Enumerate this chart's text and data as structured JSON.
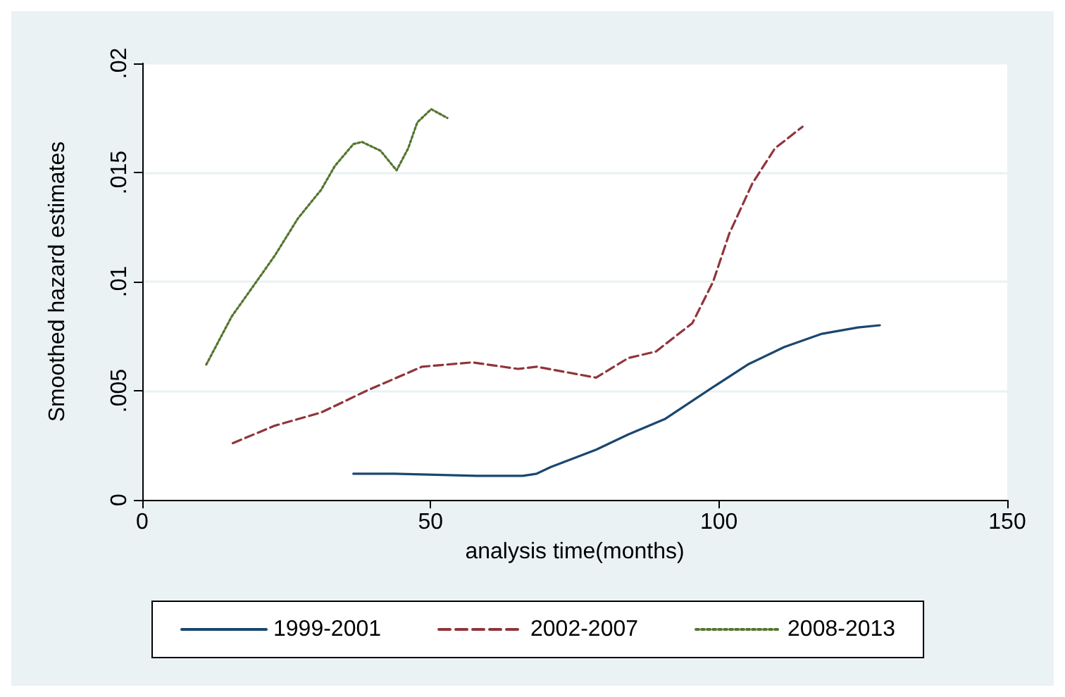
{
  "chart_data": {
    "type": "line",
    "xlabel": "analysis time(months)",
    "ylabel": "Smoothed hazard estimates",
    "xlim": [
      0,
      150
    ],
    "xticks": [
      0,
      50,
      100,
      150
    ],
    "ylim": [
      0,
      0.02
    ],
    "yticks": [
      {
        "value": 0,
        "label": "0"
      },
      {
        "value": 0.005,
        "label": ".005"
      },
      {
        "value": 0.01,
        "label": ".01"
      },
      {
        "value": 0.015,
        "label": ".015"
      },
      {
        "value": 0.02,
        "label": ".02"
      }
    ],
    "grid": "y",
    "legend": "bottom",
    "series": [
      {
        "name": "1999-2001",
        "color": "#1a476f",
        "line_style": "solid",
        "x": [
          36.6,
          43.7,
          58.0,
          66.0,
          68.4,
          70.8,
          78.7,
          84.3,
          90.6,
          98.6,
          105.0,
          111.3,
          117.7,
          124.1,
          127.9
        ],
        "values": [
          0.0012,
          0.0012,
          0.0011,
          0.0011,
          0.0012,
          0.0015,
          0.0023,
          0.003,
          0.0037,
          0.0051,
          0.0062,
          0.007,
          0.0076,
          0.0079,
          0.008
        ]
      },
      {
        "name": "2002-2007",
        "color": "#90353b",
        "line_style": "dashed",
        "x": [
          15.7,
          23.0,
          31.0,
          38.9,
          48.5,
          57.2,
          65.2,
          68.4,
          78.7,
          84.3,
          89.1,
          95.4,
          99.0,
          101.8,
          105.8,
          109.7,
          114.5
        ],
        "values": [
          0.0026,
          0.0034,
          0.004,
          0.005,
          0.0061,
          0.0063,
          0.006,
          0.0061,
          0.0056,
          0.0065,
          0.0068,
          0.0081,
          0.01,
          0.0122,
          0.0145,
          0.0161,
          0.0171
        ]
      },
      {
        "name": "2008-2013",
        "color": "#55752f",
        "line_style": "dotted",
        "x": [
          11.1,
          15.5,
          19.8,
          23.0,
          27.0,
          31.0,
          33.4,
          36.6,
          38.1,
          41.3,
          44.1,
          46.1,
          47.7,
          50.1,
          52.9
        ],
        "values": [
          0.0062,
          0.0084,
          0.01,
          0.0112,
          0.0129,
          0.0142,
          0.0153,
          0.0163,
          0.0164,
          0.016,
          0.0151,
          0.0161,
          0.0173,
          0.0179,
          0.0175
        ]
      }
    ]
  }
}
